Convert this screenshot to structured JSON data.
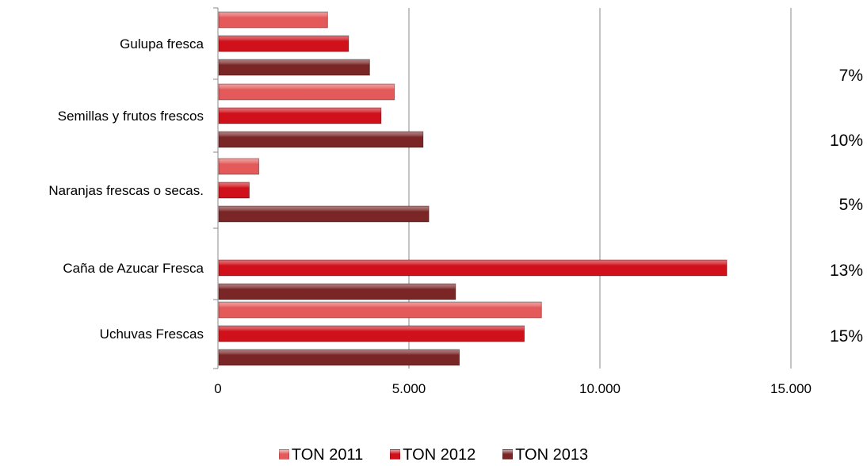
{
  "chart_data": {
    "type": "bar",
    "orientation": "horizontal",
    "categories": [
      "Uchuvas Frescas",
      "Caña de Azucar Fresca",
      "Naranjas frescas o secas.",
      "Semillas y frutos frescos",
      "Gulupa fresca"
    ],
    "series": [
      {
        "name": "TON 2011",
        "color": "#e45a5a",
        "values": [
          8450,
          null,
          1050,
          4600,
          2850
        ]
      },
      {
        "name": "TON 2012",
        "color": "#d0101a",
        "values": [
          8000,
          13300,
          800,
          4250,
          3400
        ]
      },
      {
        "name": "TON 2013",
        "color": "#7a2626",
        "values": [
          6300,
          6200,
          5500,
          5350,
          3950
        ]
      }
    ],
    "xlim": [
      0,
      15000
    ],
    "xticks": [
      0,
      5000,
      10000,
      15000
    ],
    "xtick_labels": [
      "0",
      "5.000",
      "10.000",
      "15.000"
    ],
    "grid": true,
    "legend_position": "bottom",
    "annotations": [
      "15%",
      "13%",
      "5%",
      "10%",
      "7%"
    ]
  }
}
